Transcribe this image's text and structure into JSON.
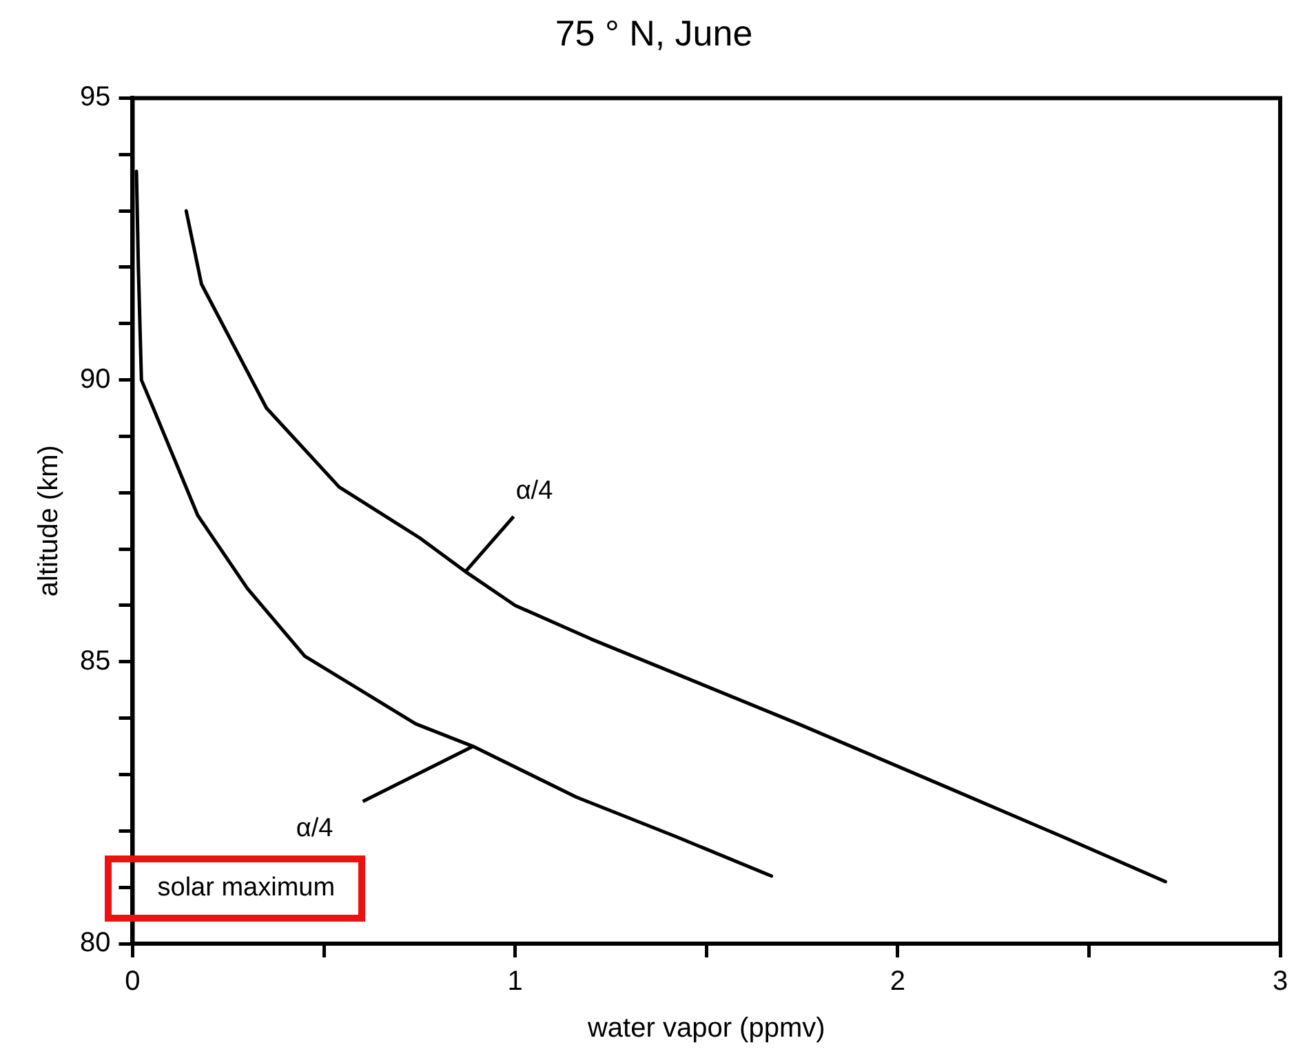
{
  "chart_data": {
    "type": "line",
    "title": "75 ° N, June",
    "xlabel": "water vapor (ppmv)",
    "ylabel": "altitude (km)",
    "xlim": [
      0,
      3
    ],
    "ylim": [
      80,
      95
    ],
    "xticks": [
      0,
      {
        "value": 0.5,
        "label": null
      },
      1,
      {
        "value": 1.5,
        "label": null
      },
      2,
      {
        "value": 2.5,
        "label": null
      },
      3
    ],
    "yticks": [
      80,
      {
        "value": 81,
        "label": null
      },
      {
        "value": 82,
        "label": null
      },
      {
        "value": 83,
        "label": null
      },
      {
        "value": 84,
        "label": null
      },
      85,
      {
        "value": 86,
        "label": null
      },
      {
        "value": 87,
        "label": null
      },
      {
        "value": 88,
        "label": null
      },
      {
        "value": 89,
        "label": null
      },
      90,
      {
        "value": 91,
        "label": null
      },
      {
        "value": 92,
        "label": null
      },
      {
        "value": 93,
        "label": null
      },
      {
        "value": 94,
        "label": null
      },
      95
    ],
    "series": [
      {
        "color": "#000000",
        "x": [
          0.14,
          0.18,
          0.35,
          0.54,
          0.75,
          0.87,
          1.0,
          1.2,
          1.74,
          2.12,
          2.43,
          2.7
        ],
        "values": [
          93.0,
          91.7,
          89.5,
          88.1,
          87.2,
          86.6,
          86.0,
          85.4,
          83.9,
          82.8,
          81.9,
          81.1
        ]
      },
      {
        "color": "#000000",
        "x": [
          0.01,
          0.015,
          0.023,
          0.054,
          0.17,
          0.3,
          0.45,
          0.74,
          0.89,
          1.16,
          1.42,
          1.67
        ],
        "values": [
          93.7,
          92.0,
          90.0,
          89.5,
          87.6,
          86.3,
          85.1,
          83.9,
          83.5,
          82.6,
          81.9,
          81.2
        ]
      }
    ],
    "annotations": [
      {
        "text": "α/4",
        "x": 0.87,
        "y": 86.6
      },
      {
        "text": "α/4",
        "x": 0.89,
        "y": 83.5
      },
      "solar maximum"
    ],
    "grid": false,
    "legend": false,
    "marker": "none",
    "line_style": "solid"
  }
}
